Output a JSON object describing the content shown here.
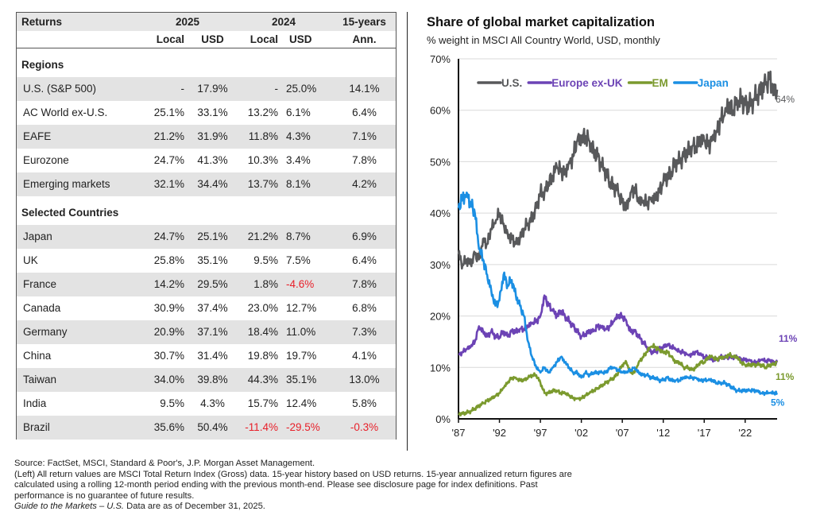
{
  "table": {
    "header": {
      "returns_label": "Returns",
      "year1": "2025",
      "year2": "2024",
      "long": "15-years",
      "sub": [
        "Local",
        "USD",
        "Local",
        "USD",
        "Ann."
      ]
    },
    "sections": [
      {
        "title": "Regions",
        "rows": [
          {
            "name": "U.S. (S&P 500)",
            "values": [
              "-",
              "17.9%",
              "-",
              "25.0%",
              "14.1%"
            ]
          },
          {
            "name": "AC World ex-U.S.",
            "values": [
              "25.1%",
              "33.1%",
              "13.2%",
              "6.1%",
              "6.4%"
            ]
          },
          {
            "name": "EAFE",
            "values": [
              "21.2%",
              "31.9%",
              "11.8%",
              "4.3%",
              "7.1%"
            ]
          },
          {
            "name": "Eurozone",
            "values": [
              "24.7%",
              "41.3%",
              "10.3%",
              "3.4%",
              "7.8%"
            ]
          },
          {
            "name": "Emerging markets",
            "values": [
              "32.1%",
              "34.4%",
              "13.7%",
              "8.1%",
              "4.2%"
            ]
          }
        ]
      },
      {
        "title": "Selected Countries",
        "rows": [
          {
            "name": "Japan",
            "values": [
              "24.7%",
              "25.1%",
              "21.2%",
              "8.7%",
              "6.9%"
            ]
          },
          {
            "name": "UK",
            "values": [
              "25.8%",
              "35.1%",
              "9.5%",
              "7.5%",
              "6.4%"
            ]
          },
          {
            "name": "France",
            "values": [
              "14.2%",
              "29.5%",
              "1.8%",
              "-4.6%",
              "7.8%"
            ]
          },
          {
            "name": "Canada",
            "values": [
              "30.9%",
              "37.4%",
              "23.0%",
              "12.7%",
              "6.8%"
            ]
          },
          {
            "name": "Germany",
            "values": [
              "20.9%",
              "37.1%",
              "18.4%",
              "11.0%",
              "7.3%"
            ]
          },
          {
            "name": "China",
            "values": [
              "30.7%",
              "31.4%",
              "19.8%",
              "19.7%",
              "4.1%"
            ]
          },
          {
            "name": "Taiwan",
            "values": [
              "34.0%",
              "39.8%",
              "44.3%",
              "35.1%",
              "13.0%"
            ]
          },
          {
            "name": "India",
            "values": [
              "9.5%",
              "4.3%",
              "15.7%",
              "12.4%",
              "5.8%"
            ]
          },
          {
            "name": "Brazil",
            "values": [
              "35.6%",
              "50.4%",
              "-11.4%",
              "-29.5%",
              "-0.3%"
            ]
          }
        ]
      }
    ],
    "negative_color": "#e8202a"
  },
  "chart_data": {
    "type": "line",
    "title": "Share of global market capitalization",
    "subtitle": "% weight in MSCI All Country World, USD, monthly",
    "xlabel": "",
    "ylabel": "",
    "ylim": [
      0,
      70
    ],
    "xlim": [
      1987,
      2025.9
    ],
    "yticks": [
      0,
      10,
      20,
      30,
      40,
      50,
      60,
      70
    ],
    "ytick_labels": [
      "0%",
      "10%",
      "20%",
      "30%",
      "40%",
      "50%",
      "60%",
      "70%"
    ],
    "xticks": [
      1987,
      1992,
      1997,
      2002,
      2007,
      2012,
      2017,
      2022
    ],
    "xtick_labels": [
      "'87",
      "'92",
      "'97",
      "'02",
      "'07",
      "'12",
      "'17",
      "'22"
    ],
    "grid": "horizontal",
    "legend_position": "top-left",
    "x": [
      1987,
      1987.5,
      1988,
      1988.5,
      1989,
      1989.5,
      1990,
      1990.5,
      1991,
      1991.5,
      1992,
      1992.5,
      1993,
      1993.5,
      1994,
      1994.5,
      1995,
      1995.5,
      1996,
      1996.5,
      1997,
      1997.5,
      1998,
      1998.5,
      1999,
      1999.5,
      2000,
      2000.5,
      2001,
      2001.5,
      2002,
      2002.5,
      2003,
      2003.5,
      2004,
      2004.5,
      2005,
      2005.5,
      2006,
      2006.5,
      2007,
      2007.5,
      2008,
      2008.5,
      2009,
      2009.5,
      2010,
      2010.5,
      2011,
      2011.5,
      2012,
      2012.5,
      2013,
      2013.5,
      2014,
      2014.5,
      2015,
      2015.5,
      2016,
      2016.5,
      2017,
      2017.5,
      2018,
      2018.5,
      2019,
      2019.5,
      2020,
      2020.5,
      2021,
      2021.5,
      2022,
      2022.5,
      2023,
      2023.5,
      2024,
      2024.5,
      2025,
      2025.5,
      2025.9
    ],
    "series": [
      {
        "name": "U.S.",
        "color": "#58595b",
        "end_label": "64%",
        "values": [
          32,
          30,
          31,
          30,
          32,
          31,
          35,
          34,
          37,
          38,
          40,
          38,
          36,
          35,
          34,
          35,
          37,
          38,
          39,
          41,
          44,
          44,
          46,
          47,
          49,
          48,
          48,
          50,
          51,
          54,
          54,
          55,
          54,
          52,
          51,
          49,
          48,
          46,
          45,
          44,
          42,
          41,
          44,
          45,
          42,
          42,
          42,
          43,
          43,
          44,
          46,
          47,
          48,
          50,
          50,
          51,
          52,
          53,
          53,
          54,
          54,
          53,
          55,
          56,
          58,
          59,
          61,
          60,
          62,
          62,
          61,
          61,
          62,
          63,
          64,
          65,
          66,
          64,
          64
        ]
      },
      {
        "name": "Europe ex-UK",
        "color": "#6c43b5",
        "end_label": "11%",
        "values": [
          12.5,
          13,
          13.5,
          14,
          15,
          18,
          17,
          16,
          17,
          16,
          16,
          17,
          16,
          17,
          17,
          17.5,
          17.5,
          18,
          18.5,
          19,
          20,
          24,
          22,
          21,
          20,
          21,
          20,
          19,
          18,
          17,
          16,
          16.5,
          17,
          17,
          18,
          18,
          17.5,
          18,
          19,
          20,
          20,
          19,
          17,
          17,
          16,
          15,
          14,
          13,
          13,
          13.5,
          14,
          14.5,
          14,
          13.5,
          13,
          13,
          12.5,
          12.5,
          13,
          12.5,
          12,
          12,
          11.5,
          11.5,
          12,
          12,
          12,
          12,
          12,
          11.5,
          11.5,
          11.5,
          11,
          11,
          11.5,
          11.2,
          11.5,
          11,
          11
        ]
      },
      {
        "name": "EM",
        "color": "#7b9a2e",
        "end_label": "11%",
        "values": [
          1,
          1,
          1.2,
          1.5,
          2,
          2.5,
          3,
          3.5,
          4,
          4.5,
          5,
          6,
          7,
          8,
          8,
          7.5,
          7.5,
          8,
          8.5,
          8.5,
          7,
          5,
          5,
          5.5,
          5.5,
          5,
          5,
          4.5,
          4,
          4,
          4,
          4.5,
          5,
          5.5,
          6,
          6.5,
          7,
          7.5,
          8,
          9,
          10.5,
          11,
          9,
          9,
          11,
          12,
          13,
          14,
          14,
          13.5,
          13,
          13,
          12,
          11,
          11,
          10,
          10,
          9.5,
          10,
          11,
          11,
          12,
          12,
          11.5,
          12,
          12,
          12.5,
          12,
          12,
          11,
          10.5,
          10.5,
          10.5,
          10.5,
          10.5,
          10,
          10.5,
          10.5,
          11
        ]
      },
      {
        "name": "Japan",
        "color": "#1b8fe3",
        "end_label": "5%",
        "values": [
          41,
          43,
          44,
          42,
          40,
          33,
          31,
          28,
          25,
          22,
          23,
          28,
          26,
          27,
          24,
          22,
          20,
          15,
          12,
          10,
          9,
          10,
          9,
          10,
          11,
          12,
          11,
          10,
          9,
          9,
          8,
          9,
          8.5,
          9,
          9,
          9,
          9,
          10,
          10,
          9.5,
          9,
          9,
          9.5,
          10,
          9,
          8.5,
          8.5,
          8,
          8,
          7.5,
          7.5,
          8,
          7.5,
          7.5,
          7.5,
          8,
          8,
          8,
          8,
          7.5,
          7.5,
          7.5,
          7.5,
          7,
          7,
          7,
          6.5,
          6,
          5.5,
          5.5,
          5.5,
          5.5,
          5.5,
          5.5,
          5,
          5,
          5,
          5,
          5
        ]
      }
    ]
  },
  "footnote": {
    "line1": "Source: FactSet, MSCI, Standard & Poor's, J.P. Morgan Asset Management.",
    "line2": "(Left) All return values are MSCI Total Return Index (Gross) data. 15-year history based on USD returns. 15-year annualized return figures are",
    "line3": "calculated using a rolling 12-month period ending with the previous month-end. Please see disclosure page for index definitions. Past",
    "line4": "performance is no guarantee of future results.",
    "line5_italic": "Guide to the Markets – U.S.",
    "line5_rest": " Data are as of December 31, 2025."
  }
}
